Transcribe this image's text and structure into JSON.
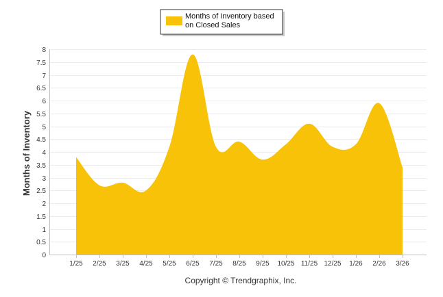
{
  "chart_data": {
    "type": "area",
    "categories": [
      "1/25",
      "2/25",
      "3/25",
      "4/25",
      "5/25",
      "6/25",
      "7/25",
      "8/25",
      "9/25",
      "10/25",
      "11/25",
      "12/25",
      "1/26",
      "2/26",
      "3/26"
    ],
    "series": [
      {
        "name": "Months of Inventory based on Closed Sales",
        "values": [
          3.8,
          2.7,
          2.8,
          2.5,
          4.2,
          7.8,
          4.2,
          4.4,
          3.7,
          4.3,
          5.1,
          4.2,
          4.3,
          5.9,
          3.4
        ],
        "color": "#f7c207"
      }
    ],
    "title": "",
    "xlabel": "",
    "ylabel": "Months of Inventory",
    "ylim": [
      0,
      8
    ],
    "yticks": [
      "0",
      "0.5",
      "1",
      "1.5",
      "2",
      "2.5",
      "3",
      "3.5",
      "4",
      "4.5",
      "5",
      "5.5",
      "6",
      "6.5",
      "7",
      "7.5",
      "8"
    ],
    "grid": true,
    "legend": {
      "placement": "top-center",
      "lines": [
        "Months of Inventory based",
        "on Closed Sales"
      ]
    },
    "credit": "Copyright © Trendgraphix, Inc."
  }
}
